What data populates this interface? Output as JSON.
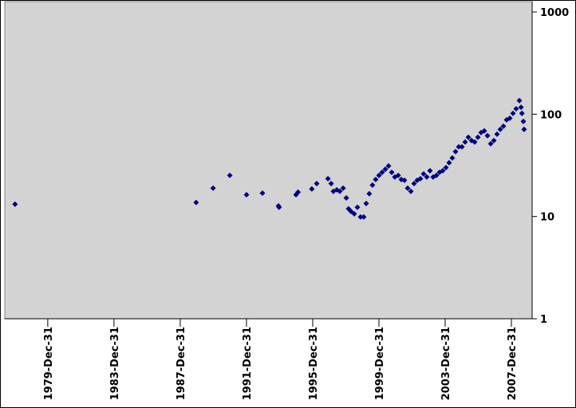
{
  "chart_data": {
    "type": "scatter",
    "x": [
      "1978-01-08",
      "1988-12-16",
      "1989-12-25",
      "1990-12-28",
      "1992-01-01",
      "1992-12-17",
      "1993-12-05",
      "1993-12-20",
      "1994-12-28",
      "1995-02-10",
      "1995-12-12",
      "1996-03-28",
      "1996-12-01",
      "1997-02-10",
      "1997-04-01",
      "1997-06-15",
      "1997-08-20",
      "1997-11-01",
      "1998-01-10",
      "1998-03-01",
      "1998-04-25",
      "1998-07-05",
      "1998-09-12",
      "1998-11-20",
      "1999-01-30",
      "1999-03-25",
      "1999-06-01",
      "1999-08-10",
      "1999-10-20",
      "2000-01-01",
      "2000-03-10",
      "2000-05-20",
      "2000-07-30",
      "2000-10-08",
      "2000-12-15",
      "2001-02-28",
      "2001-05-08",
      "2001-07-16",
      "2001-09-24",
      "2001-12-04",
      "2002-02-13",
      "2002-04-23",
      "2002-07-03",
      "2002-09-11",
      "2002-11-20",
      "2003-01-30",
      "2003-04-10",
      "2003-06-20",
      "2003-08-28",
      "2003-11-07",
      "2004-01-17",
      "2004-03-27",
      "2004-06-05",
      "2004-08-15",
      "2004-10-25",
      "2005-01-04",
      "2005-03-15",
      "2005-05-25",
      "2005-08-03",
      "2005-10-12",
      "2005-12-22",
      "2006-03-02",
      "2006-05-12",
      "2006-07-21",
      "2006-09-30",
      "2006-12-09",
      "2007-02-17",
      "2007-04-29",
      "2007-07-08",
      "2007-09-16",
      "2007-11-25",
      "2008-02-04",
      "2008-04-14",
      "2008-06-24",
      "2008-07-31",
      "2008-08-19",
      "2008-09-20",
      "2008-10-07"
    ],
    "values": [
      13.2,
      13.7,
      18.9,
      25.2,
      16.3,
      16.9,
      12.7,
      12.3,
      16.3,
      17.3,
      18.6,
      21.0,
      23.4,
      21.0,
      17.6,
      18.2,
      17.6,
      18.9,
      15.2,
      11.9,
      11.2,
      10.6,
      12.3,
      9.9,
      9.9,
      13.4,
      16.7,
      20.3,
      23.0,
      25.2,
      27.0,
      29.0,
      31.2,
      27.0,
      24.3,
      25.2,
      23.0,
      22.6,
      18.9,
      17.6,
      21.0,
      22.6,
      23.4,
      26.1,
      24.3,
      28.0,
      24.3,
      25.2,
      27.0,
      28.0,
      30.0,
      33.5,
      37.3,
      43.1,
      48.0,
      48.0,
      53.4,
      59.5,
      55.3,
      53.4,
      59.5,
      66.2,
      68.7,
      61.7,
      51.5,
      55.3,
      63.8,
      71.1,
      76.4,
      88.2,
      91.4,
      102,
      113,
      136,
      117,
      102,
      85,
      71
    ],
    "color": "#000080",
    "xlim": [
      "1977-05-27",
      "2009-04-01"
    ],
    "xticks": [
      {
        "value": "1979-12-31",
        "label": "1979-Dec-31"
      },
      {
        "value": "1983-12-31",
        "label": "1983-Dec-31"
      },
      {
        "value": "1987-12-31",
        "label": "1987-Dec-31"
      },
      {
        "value": "1991-12-31",
        "label": "1991-Dec-31"
      },
      {
        "value": "1995-12-31",
        "label": "1995-Dec-31"
      },
      {
        "value": "1999-12-31",
        "label": "1999-Dec-31"
      },
      {
        "value": "2003-12-31",
        "label": "2003-Dec-31"
      },
      {
        "value": "2007-12-31",
        "label": "2007-Dec-31"
      }
    ],
    "ylim": [
      1,
      1000
    ],
    "yticks": [
      1,
      10,
      100,
      1000
    ],
    "log_y": true
  }
}
